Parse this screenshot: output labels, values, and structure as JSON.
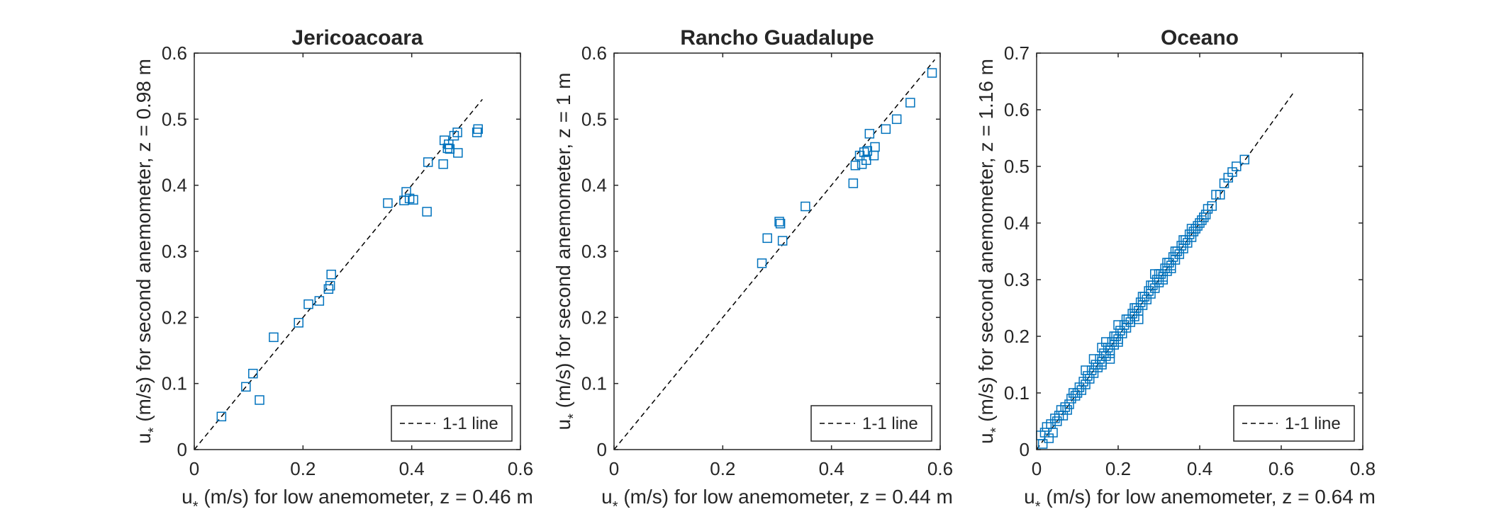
{
  "colors": {
    "marker": "#0072BD",
    "axes": "#262626",
    "line": "#000000"
  },
  "chart_data": [
    {
      "type": "scatter",
      "title": "Jericoacoara",
      "xlabel_main": "u",
      "xlabel_sub": "*",
      "xlabel_rest": " (m/s) for low anemometer, z = 0.46 m",
      "ylabel_main": "u",
      "ylabel_sub": "*",
      "ylabel_rest": " (m/s) for second anemometer, z = 0.98 m",
      "xlim": [
        0,
        0.6
      ],
      "ylim": [
        0,
        0.6
      ],
      "xticks": [
        0,
        0.2,
        0.4,
        0.6
      ],
      "xtick_labels": [
        "0",
        "0.2",
        "0.4",
        "0.6"
      ],
      "yticks": [
        0,
        0.1,
        0.2,
        0.3,
        0.4,
        0.5,
        0.6
      ],
      "ytick_labels": [
        "0",
        "0.1",
        "0.2",
        "0.3",
        "0.4",
        "0.5",
        "0.6"
      ],
      "reference_line": {
        "x": [
          0,
          0.53
        ],
        "y": [
          0,
          0.53
        ]
      },
      "legend": {
        "label": "1-1 line",
        "location": "bottom-right"
      },
      "points": {
        "x": [
          0.05,
          0.095,
          0.108,
          0.12,
          0.146,
          0.192,
          0.21,
          0.23,
          0.247,
          0.25,
          0.252,
          0.356,
          0.386,
          0.39,
          0.396,
          0.403,
          0.428,
          0.43,
          0.458,
          0.46,
          0.466,
          0.468,
          0.47,
          0.478,
          0.484,
          0.485,
          0.52,
          0.522
        ],
        "y": [
          0.05,
          0.095,
          0.115,
          0.075,
          0.17,
          0.192,
          0.22,
          0.225,
          0.243,
          0.248,
          0.265,
          0.373,
          0.377,
          0.39,
          0.38,
          0.378,
          0.36,
          0.435,
          0.432,
          0.468,
          0.456,
          0.462,
          0.455,
          0.475,
          0.48,
          0.449,
          0.48,
          0.485
        ]
      }
    },
    {
      "type": "scatter",
      "title": "Rancho Guadalupe",
      "xlabel_main": "u",
      "xlabel_sub": "*",
      "xlabel_rest": " (m/s) for low anemometer, z = 0.44 m",
      "ylabel_main": "u",
      "ylabel_sub": "*",
      "ylabel_rest": " (m/s) for second anemometer, z = 1 m",
      "xlim": [
        0,
        0.6
      ],
      "ylim": [
        0,
        0.6
      ],
      "xticks": [
        0,
        0.2,
        0.4,
        0.6
      ],
      "xtick_labels": [
        "0",
        "0.2",
        "0.4",
        "0.6"
      ],
      "yticks": [
        0,
        0.1,
        0.2,
        0.3,
        0.4,
        0.5,
        0.6
      ],
      "ytick_labels": [
        "0",
        "0.1",
        "0.2",
        "0.3",
        "0.4",
        "0.5",
        "0.6"
      ],
      "reference_line": {
        "x": [
          0,
          0.59
        ],
        "y": [
          0,
          0.59
        ]
      },
      "legend": {
        "label": "1-1 line",
        "location": "bottom-right"
      },
      "points": {
        "x": [
          0.272,
          0.282,
          0.304,
          0.306,
          0.31,
          0.352,
          0.44,
          0.444,
          0.452,
          0.456,
          0.46,
          0.464,
          0.466,
          0.47,
          0.478,
          0.48,
          0.5,
          0.52,
          0.545,
          0.585
        ],
        "y": [
          0.282,
          0.32,
          0.345,
          0.342,
          0.316,
          0.368,
          0.403,
          0.43,
          0.445,
          0.432,
          0.45,
          0.438,
          0.452,
          0.478,
          0.445,
          0.458,
          0.485,
          0.5,
          0.525,
          0.57
        ]
      }
    },
    {
      "type": "scatter",
      "title": "Oceano",
      "xlabel_main": "u",
      "xlabel_sub": "*",
      "xlabel_rest": " (m/s) for low anemometer, z = 0.64 m",
      "ylabel_main": "u",
      "ylabel_sub": "*",
      "ylabel_rest": " (m/s) for second anemometer, z = 1.16 m",
      "xlim": [
        0,
        0.8
      ],
      "ylim": [
        0,
        0.7
      ],
      "xticks": [
        0,
        0.2,
        0.4,
        0.6,
        0.8
      ],
      "xtick_labels": [
        "0",
        "0.2",
        "0.4",
        "0.6",
        "0.8"
      ],
      "yticks": [
        0,
        0.1,
        0.2,
        0.3,
        0.4,
        0.5,
        0.6,
        0.7
      ],
      "ytick_labels": [
        "0",
        "0.1",
        "0.2",
        "0.3",
        "0.4",
        "0.5",
        "0.6",
        "0.7"
      ],
      "reference_line": {
        "x": [
          0,
          0.63
        ],
        "y": [
          0,
          0.63
        ]
      },
      "legend": {
        "label": "1-1 line",
        "location": "bottom-right"
      },
      "points": {
        "x": [
          0.01,
          0.015,
          0.02,
          0.025,
          0.03,
          0.035,
          0.04,
          0.045,
          0.05,
          0.055,
          0.06,
          0.065,
          0.07,
          0.075,
          0.08,
          0.085,
          0.09,
          0.095,
          0.1,
          0.105,
          0.11,
          0.115,
          0.12,
          0.125,
          0.13,
          0.135,
          0.14,
          0.145,
          0.15,
          0.155,
          0.16,
          0.165,
          0.17,
          0.175,
          0.18,
          0.185,
          0.19,
          0.195,
          0.2,
          0.205,
          0.21,
          0.215,
          0.22,
          0.225,
          0.23,
          0.235,
          0.24,
          0.245,
          0.25,
          0.255,
          0.26,
          0.265,
          0.27,
          0.275,
          0.28,
          0.285,
          0.29,
          0.295,
          0.3,
          0.305,
          0.31,
          0.315,
          0.32,
          0.325,
          0.33,
          0.335,
          0.34,
          0.345,
          0.35,
          0.355,
          0.36,
          0.365,
          0.37,
          0.375,
          0.38,
          0.385,
          0.39,
          0.395,
          0.4,
          0.405,
          0.41,
          0.415,
          0.42,
          0.43,
          0.44,
          0.45,
          0.46,
          0.47,
          0.48,
          0.49,
          0.51,
          0.12,
          0.14,
          0.16,
          0.17,
          0.18,
          0.19,
          0.2,
          0.22,
          0.24,
          0.26,
          0.28,
          0.3,
          0.32,
          0.34,
          0.36,
          0.38,
          0.16,
          0.18,
          0.2,
          0.25,
          0.29,
          0.31,
          0.33
        ],
        "y": [
          0.025,
          0.01,
          0.03,
          0.04,
          0.02,
          0.045,
          0.03,
          0.055,
          0.05,
          0.06,
          0.07,
          0.06,
          0.075,
          0.07,
          0.08,
          0.09,
          0.1,
          0.095,
          0.1,
          0.11,
          0.105,
          0.12,
          0.115,
          0.13,
          0.125,
          0.14,
          0.135,
          0.15,
          0.145,
          0.16,
          0.155,
          0.17,
          0.165,
          0.18,
          0.175,
          0.19,
          0.185,
          0.2,
          0.195,
          0.21,
          0.205,
          0.22,
          0.215,
          0.23,
          0.225,
          0.24,
          0.235,
          0.25,
          0.245,
          0.26,
          0.255,
          0.27,
          0.265,
          0.28,
          0.275,
          0.29,
          0.285,
          0.3,
          0.295,
          0.31,
          0.305,
          0.32,
          0.315,
          0.33,
          0.325,
          0.34,
          0.335,
          0.35,
          0.345,
          0.36,
          0.355,
          0.37,
          0.365,
          0.38,
          0.375,
          0.385,
          0.39,
          0.395,
          0.4,
          0.405,
          0.41,
          0.415,
          0.425,
          0.43,
          0.45,
          0.45,
          0.47,
          0.48,
          0.49,
          0.5,
          0.512,
          0.14,
          0.16,
          0.15,
          0.19,
          0.17,
          0.2,
          0.19,
          0.23,
          0.25,
          0.27,
          0.29,
          0.31,
          0.33,
          0.35,
          0.37,
          0.39,
          0.18,
          0.16,
          0.22,
          0.23,
          0.31,
          0.3,
          0.32
        ]
      }
    }
  ]
}
